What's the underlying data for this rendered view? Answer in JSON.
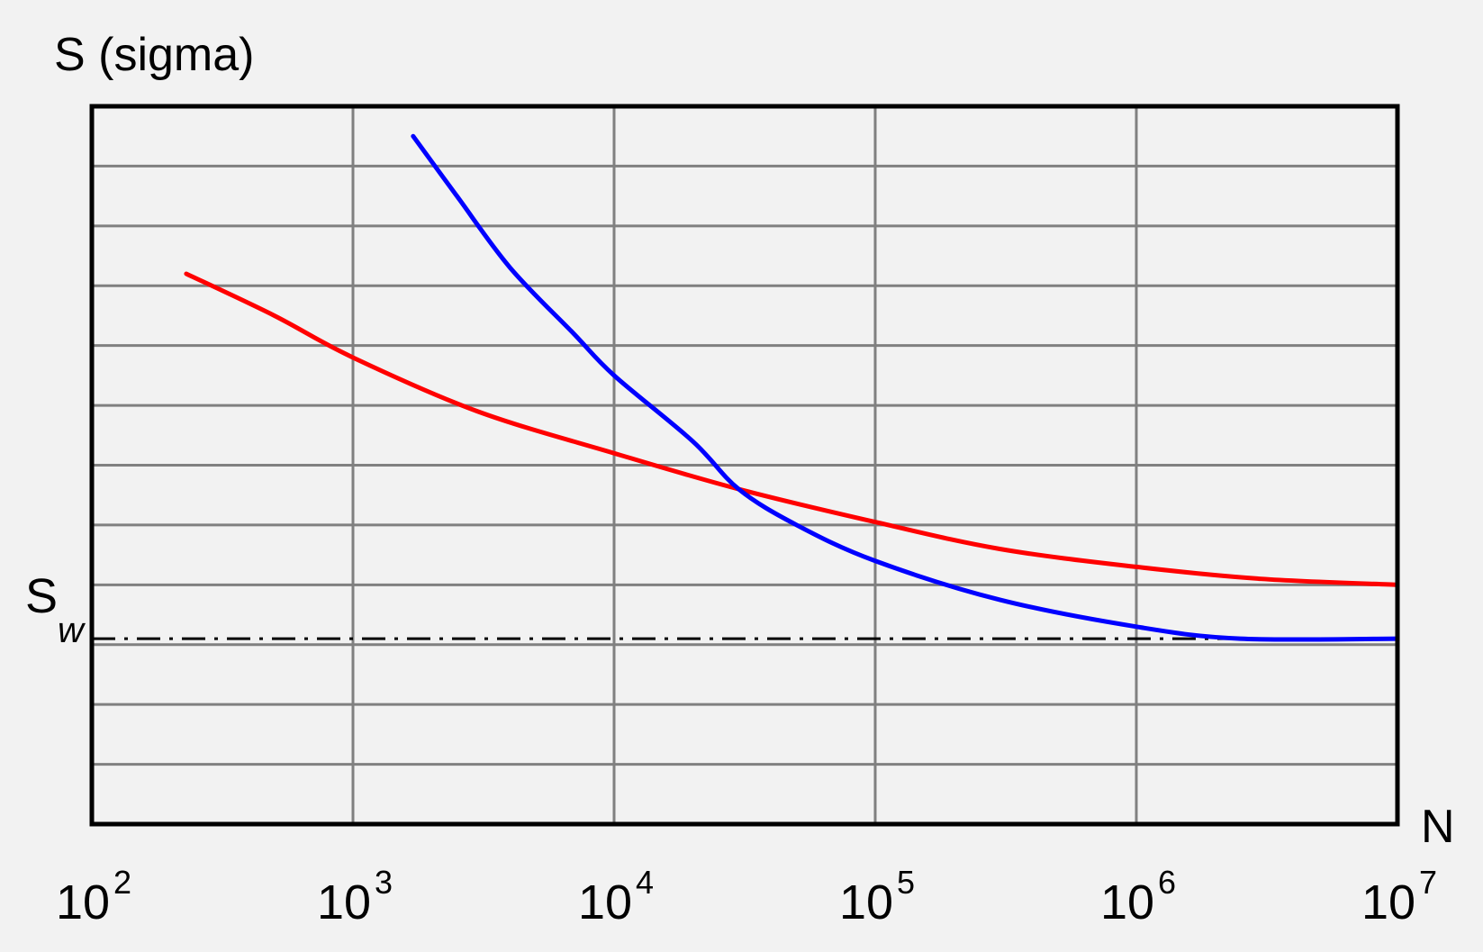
{
  "chart_data": {
    "type": "line",
    "ylabel": "S (sigma)",
    "xlabel": "N",
    "xscale": "log",
    "xlim": [
      100,
      10000000
    ],
    "x_ticks": [
      {
        "base": "10",
        "exp": "2",
        "value": 100
      },
      {
        "base": "10",
        "exp": "3",
        "value": 1000
      },
      {
        "base": "10",
        "exp": "4",
        "value": 10000
      },
      {
        "base": "10",
        "exp": "5",
        "value": 100000
      },
      {
        "base": "10",
        "exp": "6",
        "value": 1000000
      },
      {
        "base": "10",
        "exp": "7",
        "value": 10000000
      }
    ],
    "ylim": [
      0,
      12
    ],
    "grid": true,
    "endurance_limit": {
      "main": "S",
      "sub": "w",
      "value": 3.1,
      "style": "dash-dot",
      "color": "#000000"
    },
    "series": [
      {
        "color": "#ff0000",
        "points": [
          [
            230,
            9.2
          ],
          [
            500,
            8.5
          ],
          [
            1000,
            7.8
          ],
          [
            3000,
            6.9
          ],
          [
            10000,
            6.2
          ],
          [
            30000,
            5.6
          ],
          [
            100000,
            5.05
          ],
          [
            300000,
            4.6
          ],
          [
            1000000,
            4.3
          ],
          [
            3000000,
            4.1
          ],
          [
            10000000,
            4.0
          ]
        ]
      },
      {
        "color": "#0000ff",
        "points": [
          [
            1700,
            11.5
          ],
          [
            2500,
            10.5
          ],
          [
            4000,
            9.3
          ],
          [
            7000,
            8.2
          ],
          [
            10000,
            7.5
          ],
          [
            20000,
            6.4
          ],
          [
            30000,
            5.6
          ],
          [
            50000,
            5.0
          ],
          [
            100000,
            4.4
          ],
          [
            300000,
            3.75
          ],
          [
            1000000,
            3.3
          ],
          [
            2500000,
            3.1
          ],
          [
            10000000,
            3.1
          ]
        ]
      }
    ]
  },
  "colors": {
    "background": "#f2f2f2",
    "frame": "#000000",
    "grid": "#808080"
  }
}
